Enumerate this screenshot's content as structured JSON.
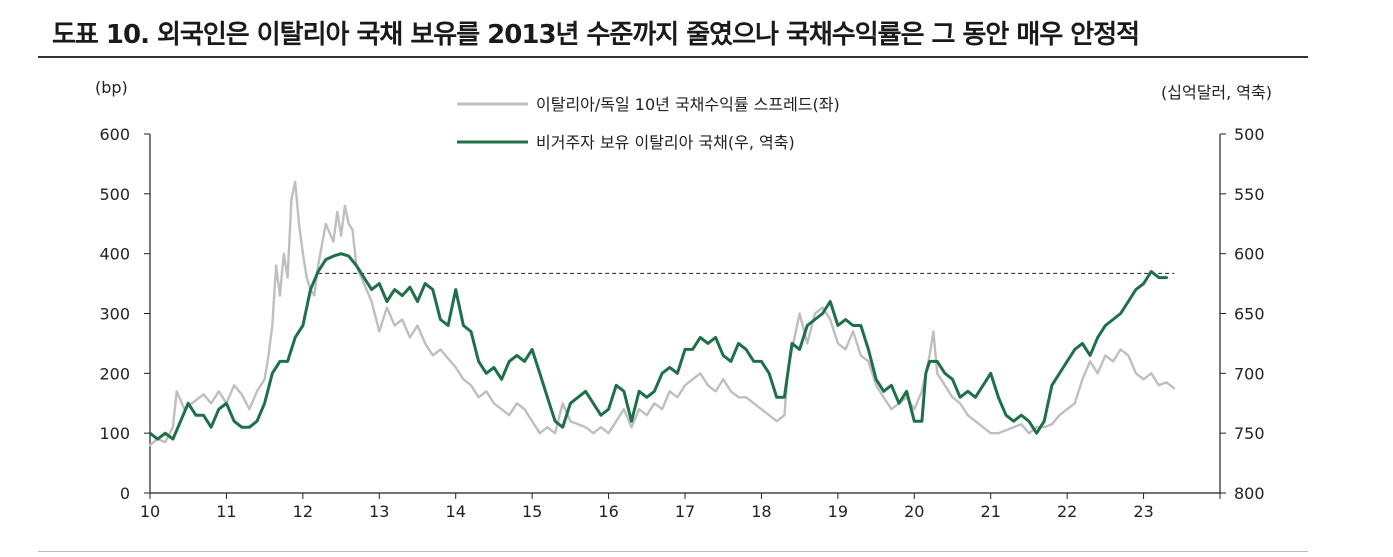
{
  "title": "도표 10. 외국인은 이탈리아 국채 보유를 2013년 수준까지 줄였으나 국채수익률은 그 동안 매우 안정적",
  "chart_data": {
    "type": "line",
    "left_unit": "(bp)",
    "right_unit": "(십억달러, 역축)",
    "x_ticks": [
      "10",
      "11",
      "12",
      "13",
      "14",
      "15",
      "16",
      "17",
      "18",
      "19",
      "20",
      "21",
      "22",
      "23"
    ],
    "x_range": [
      2010,
      2024
    ],
    "y_left": {
      "min": 0,
      "max": 600,
      "ticks": [
        0,
        100,
        200,
        300,
        400,
        500,
        600
      ]
    },
    "y_right": {
      "min": 500,
      "max": 800,
      "reversed": true,
      "ticks": [
        500,
        550,
        600,
        650,
        700,
        750,
        800
      ]
    },
    "series": [
      {
        "name": "이탈리아/독일 10년 국채수익률 스프레드(좌)",
        "axis": "left",
        "color": "#bfbfbf",
        "points": [
          [
            2010.0,
            80
          ],
          [
            2010.1,
            90
          ],
          [
            2010.2,
            85
          ],
          [
            2010.3,
            110
          ],
          [
            2010.35,
            170
          ],
          [
            2010.45,
            140
          ],
          [
            2010.55,
            150
          ],
          [
            2010.7,
            165
          ],
          [
            2010.8,
            150
          ],
          [
            2010.9,
            170
          ],
          [
            2011.0,
            150
          ],
          [
            2011.1,
            180
          ],
          [
            2011.2,
            165
          ],
          [
            2011.3,
            140
          ],
          [
            2011.4,
            170
          ],
          [
            2011.5,
            190
          ],
          [
            2011.55,
            230
          ],
          [
            2011.6,
            280
          ],
          [
            2011.65,
            380
          ],
          [
            2011.7,
            330
          ],
          [
            2011.75,
            400
          ],
          [
            2011.8,
            360
          ],
          [
            2011.85,
            490
          ],
          [
            2011.9,
            520
          ],
          [
            2011.95,
            450
          ],
          [
            2012.0,
            400
          ],
          [
            2012.05,
            360
          ],
          [
            2012.1,
            340
          ],
          [
            2012.15,
            330
          ],
          [
            2012.2,
            380
          ],
          [
            2012.3,
            450
          ],
          [
            2012.4,
            420
          ],
          [
            2012.45,
            470
          ],
          [
            2012.5,
            430
          ],
          [
            2012.55,
            480
          ],
          [
            2012.6,
            450
          ],
          [
            2012.65,
            440
          ],
          [
            2012.7,
            380
          ],
          [
            2012.8,
            350
          ],
          [
            2012.9,
            320
          ],
          [
            2013.0,
            270
          ],
          [
            2013.1,
            310
          ],
          [
            2013.2,
            280
          ],
          [
            2013.3,
            290
          ],
          [
            2013.4,
            260
          ],
          [
            2013.5,
            280
          ],
          [
            2013.6,
            250
          ],
          [
            2013.7,
            230
          ],
          [
            2013.8,
            240
          ],
          [
            2014.0,
            210
          ],
          [
            2014.1,
            190
          ],
          [
            2014.2,
            180
          ],
          [
            2014.3,
            160
          ],
          [
            2014.4,
            170
          ],
          [
            2014.5,
            150
          ],
          [
            2014.6,
            140
          ],
          [
            2014.7,
            130
          ],
          [
            2014.8,
            150
          ],
          [
            2014.9,
            140
          ],
          [
            2015.0,
            120
          ],
          [
            2015.1,
            100
          ],
          [
            2015.2,
            110
          ],
          [
            2015.3,
            100
          ],
          [
            2015.4,
            150
          ],
          [
            2015.5,
            120
          ],
          [
            2015.6,
            115
          ],
          [
            2015.7,
            110
          ],
          [
            2015.8,
            100
          ],
          [
            2015.9,
            110
          ],
          [
            2016.0,
            100
          ],
          [
            2016.1,
            120
          ],
          [
            2016.2,
            140
          ],
          [
            2016.3,
            110
          ],
          [
            2016.4,
            140
          ],
          [
            2016.5,
            130
          ],
          [
            2016.6,
            150
          ],
          [
            2016.7,
            140
          ],
          [
            2016.8,
            170
          ],
          [
            2016.9,
            160
          ],
          [
            2017.0,
            180
          ],
          [
            2017.1,
            190
          ],
          [
            2017.2,
            200
          ],
          [
            2017.3,
            180
          ],
          [
            2017.4,
            170
          ],
          [
            2017.5,
            190
          ],
          [
            2017.6,
            170
          ],
          [
            2017.7,
            160
          ],
          [
            2017.8,
            160
          ],
          [
            2017.9,
            150
          ],
          [
            2018.0,
            140
          ],
          [
            2018.1,
            130
          ],
          [
            2018.2,
            120
          ],
          [
            2018.3,
            130
          ],
          [
            2018.35,
            210
          ],
          [
            2018.4,
            240
          ],
          [
            2018.5,
            300
          ],
          [
            2018.6,
            250
          ],
          [
            2018.7,
            300
          ],
          [
            2018.8,
            310
          ],
          [
            2018.9,
            290
          ],
          [
            2019.0,
            250
          ],
          [
            2019.1,
            240
          ],
          [
            2019.2,
            270
          ],
          [
            2019.3,
            230
          ],
          [
            2019.4,
            220
          ],
          [
            2019.5,
            180
          ],
          [
            2019.6,
            160
          ],
          [
            2019.7,
            140
          ],
          [
            2019.8,
            150
          ],
          [
            2019.9,
            160
          ],
          [
            2020.0,
            140
          ],
          [
            2020.1,
            170
          ],
          [
            2020.2,
            230
          ],
          [
            2020.25,
            270
          ],
          [
            2020.3,
            200
          ],
          [
            2020.4,
            180
          ],
          [
            2020.5,
            160
          ],
          [
            2020.6,
            150
          ],
          [
            2020.7,
            130
          ],
          [
            2020.8,
            120
          ],
          [
            2020.9,
            110
          ],
          [
            2021.0,
            100
          ],
          [
            2021.1,
            100
          ],
          [
            2021.2,
            105
          ],
          [
            2021.3,
            110
          ],
          [
            2021.4,
            115
          ],
          [
            2021.5,
            100
          ],
          [
            2021.6,
            110
          ],
          [
            2021.7,
            110
          ],
          [
            2021.8,
            115
          ],
          [
            2021.9,
            130
          ],
          [
            2022.0,
            140
          ],
          [
            2022.1,
            150
          ],
          [
            2022.2,
            190
          ],
          [
            2022.3,
            220
          ],
          [
            2022.4,
            200
          ],
          [
            2022.5,
            230
          ],
          [
            2022.6,
            220
          ],
          [
            2022.7,
            240
          ],
          [
            2022.8,
            230
          ],
          [
            2022.9,
            200
          ],
          [
            2023.0,
            190
          ],
          [
            2023.1,
            200
          ],
          [
            2023.2,
            180
          ],
          [
            2023.3,
            185
          ],
          [
            2023.4,
            175
          ]
        ]
      },
      {
        "name": "비거주자 보유 이탈리아 국채(우, 역축)",
        "axis": "right",
        "color": "#1f7048",
        "points": [
          [
            2010.0,
            750
          ],
          [
            2010.1,
            755
          ],
          [
            2010.2,
            750
          ],
          [
            2010.3,
            755
          ],
          [
            2010.4,
            740
          ],
          [
            2010.5,
            725
          ],
          [
            2010.6,
            735
          ],
          [
            2010.7,
            735
          ],
          [
            2010.8,
            745
          ],
          [
            2010.9,
            730
          ],
          [
            2011.0,
            725
          ],
          [
            2011.1,
            740
          ],
          [
            2011.2,
            745
          ],
          [
            2011.3,
            745
          ],
          [
            2011.4,
            740
          ],
          [
            2011.5,
            725
          ],
          [
            2011.6,
            700
          ],
          [
            2011.7,
            690
          ],
          [
            2011.8,
            690
          ],
          [
            2011.9,
            670
          ],
          [
            2012.0,
            660
          ],
          [
            2012.1,
            630
          ],
          [
            2012.2,
            615
          ],
          [
            2012.3,
            605
          ],
          [
            2012.4,
            602
          ],
          [
            2012.5,
            600
          ],
          [
            2012.6,
            602
          ],
          [
            2012.7,
            610
          ],
          [
            2012.8,
            620
          ],
          [
            2012.9,
            630
          ],
          [
            2013.0,
            625
          ],
          [
            2013.1,
            640
          ],
          [
            2013.2,
            630
          ],
          [
            2013.3,
            635
          ],
          [
            2013.4,
            628
          ],
          [
            2013.5,
            640
          ],
          [
            2013.6,
            625
          ],
          [
            2013.7,
            630
          ],
          [
            2013.8,
            655
          ],
          [
            2013.9,
            660
          ],
          [
            2014.0,
            630
          ],
          [
            2014.1,
            660
          ],
          [
            2014.2,
            665
          ],
          [
            2014.3,
            690
          ],
          [
            2014.4,
            700
          ],
          [
            2014.5,
            695
          ],
          [
            2014.6,
            705
          ],
          [
            2014.7,
            690
          ],
          [
            2014.8,
            685
          ],
          [
            2014.9,
            690
          ],
          [
            2015.0,
            680
          ],
          [
            2015.1,
            700
          ],
          [
            2015.2,
            720
          ],
          [
            2015.3,
            740
          ],
          [
            2015.4,
            745
          ],
          [
            2015.5,
            725
          ],
          [
            2015.6,
            720
          ],
          [
            2015.7,
            715
          ],
          [
            2015.8,
            725
          ],
          [
            2015.9,
            735
          ],
          [
            2016.0,
            730
          ],
          [
            2016.1,
            710
          ],
          [
            2016.2,
            715
          ],
          [
            2016.3,
            740
          ],
          [
            2016.4,
            715
          ],
          [
            2016.5,
            720
          ],
          [
            2016.6,
            715
          ],
          [
            2016.7,
            700
          ],
          [
            2016.8,
            695
          ],
          [
            2016.9,
            700
          ],
          [
            2017.0,
            680
          ],
          [
            2017.1,
            680
          ],
          [
            2017.2,
            670
          ],
          [
            2017.3,
            675
          ],
          [
            2017.4,
            670
          ],
          [
            2017.5,
            685
          ],
          [
            2017.6,
            690
          ],
          [
            2017.7,
            675
          ],
          [
            2017.8,
            680
          ],
          [
            2017.9,
            690
          ],
          [
            2018.0,
            690
          ],
          [
            2018.1,
            700
          ],
          [
            2018.2,
            720
          ],
          [
            2018.3,
            720
          ],
          [
            2018.4,
            675
          ],
          [
            2018.5,
            680
          ],
          [
            2018.6,
            660
          ],
          [
            2018.7,
            655
          ],
          [
            2018.8,
            650
          ],
          [
            2018.9,
            640
          ],
          [
            2019.0,
            660
          ],
          [
            2019.1,
            655
          ],
          [
            2019.2,
            660
          ],
          [
            2019.3,
            660
          ],
          [
            2019.4,
            680
          ],
          [
            2019.5,
            705
          ],
          [
            2019.6,
            715
          ],
          [
            2019.7,
            710
          ],
          [
            2019.8,
            725
          ],
          [
            2019.9,
            715
          ],
          [
            2020.0,
            740
          ],
          [
            2020.1,
            740
          ],
          [
            2020.15,
            700
          ],
          [
            2020.2,
            690
          ],
          [
            2020.3,
            690
          ],
          [
            2020.4,
            700
          ],
          [
            2020.5,
            705
          ],
          [
            2020.6,
            720
          ],
          [
            2020.7,
            715
          ],
          [
            2020.8,
            720
          ],
          [
            2020.9,
            710
          ],
          [
            2021.0,
            700
          ],
          [
            2021.1,
            720
          ],
          [
            2021.2,
            735
          ],
          [
            2021.3,
            740
          ],
          [
            2021.4,
            735
          ],
          [
            2021.5,
            740
          ],
          [
            2021.6,
            750
          ],
          [
            2021.7,
            740
          ],
          [
            2021.8,
            710
          ],
          [
            2021.9,
            700
          ],
          [
            2022.0,
            690
          ],
          [
            2022.1,
            680
          ],
          [
            2022.2,
            675
          ],
          [
            2022.3,
            685
          ],
          [
            2022.4,
            670
          ],
          [
            2022.5,
            660
          ],
          [
            2022.6,
            655
          ],
          [
            2022.7,
            650
          ],
          [
            2022.8,
            640
          ],
          [
            2022.9,
            630
          ],
          [
            2023.0,
            625
          ],
          [
            2023.1,
            615
          ],
          [
            2023.2,
            620
          ],
          [
            2023.3,
            620
          ]
        ]
      }
    ],
    "reference_line": {
      "style": "dashed",
      "axis": "left",
      "value": 367,
      "x_range": [
        2012.2,
        2023.4
      ]
    }
  }
}
